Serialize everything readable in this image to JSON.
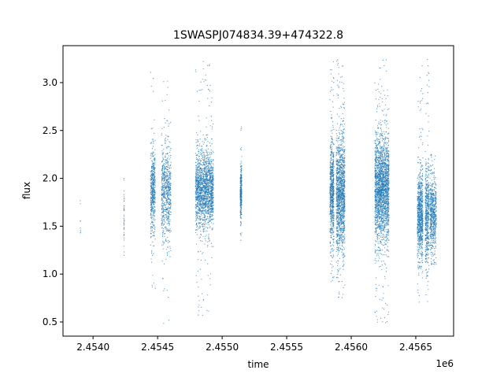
{
  "chart_data": {
    "type": "scatter",
    "title": "1SWASPJ074834.39+474322.8",
    "xlabel": "time",
    "ylabel": "flux",
    "x_offset_label": "1e6",
    "xlim": [
      2453767,
      2456793
    ],
    "ylim": [
      0.352,
      3.386
    ],
    "x_ticks": [
      2454000,
      2454500,
      2455000,
      2455500,
      2456000,
      2456500
    ],
    "x_tick_labels": [
      "2.4540",
      "2.4545",
      "2.4550",
      "2.4555",
      "2.4560",
      "2.4565"
    ],
    "y_ticks": [
      0.5,
      1.0,
      1.5,
      2.0,
      2.5,
      3.0
    ],
    "y_tick_labels": [
      "0.5",
      "1.0",
      "1.5",
      "2.0",
      "2.5",
      "3.0"
    ],
    "grid": false,
    "legend": "none",
    "marker_color": "#1f77b4",
    "point_groups": [
      {
        "time_range": [
          2453900,
          2453904
        ],
        "flux_median": 1.6,
        "flux_sd": 0.2,
        "flux_range": [
          1.43,
          2.05
        ],
        "n_points": 8
      },
      {
        "time_range": [
          2454238,
          2454242
        ],
        "flux_median": 1.6,
        "flux_sd": 0.22,
        "flux_range": [
          1.04,
          2.0
        ],
        "n_points": 40
      },
      {
        "time_range": [
          2454445,
          2454482
        ],
        "flux_median": 1.85,
        "flux_sd": 0.22,
        "flux_range": [
          0.7,
          3.18
        ],
        "n_points": 500
      },
      {
        "time_range": [
          2454530,
          2454604
        ],
        "flux_median": 1.85,
        "flux_sd": 0.25,
        "flux_range": [
          0.48,
          3.2
        ],
        "n_points": 700
      },
      {
        "time_range": [
          2454793,
          2454933
        ],
        "flux_median": 1.88,
        "flux_sd": 0.2,
        "flux_range": [
          0.57,
          3.22
        ],
        "n_points": 1800
      },
      {
        "time_range": [
          2455140,
          2455152
        ],
        "flux_median": 1.85,
        "flux_sd": 0.13,
        "flux_range": [
          1.3,
          2.55
        ],
        "n_points": 300
      },
      {
        "time_range": [
          2455835,
          2455866
        ],
        "flux_median": 1.85,
        "flux_sd": 0.27,
        "flux_range": [
          0.9,
          3.25
        ],
        "n_points": 700
      },
      {
        "time_range": [
          2455884,
          2455951
        ],
        "flux_median": 1.85,
        "flux_sd": 0.3,
        "flux_range": [
          0.75,
          3.25
        ],
        "n_points": 1400
      },
      {
        "time_range": [
          2456183,
          2456293
        ],
        "flux_median": 1.9,
        "flux_sd": 0.27,
        "flux_range": [
          0.48,
          3.25
        ],
        "n_points": 2200
      },
      {
        "time_range": [
          2456512,
          2456555
        ],
        "flux_median": 1.6,
        "flux_sd": 0.22,
        "flux_range": [
          0.7,
          3.2
        ],
        "n_points": 800
      },
      {
        "time_range": [
          2456573,
          2456604
        ],
        "flux_median": 1.65,
        "flux_sd": 0.27,
        "flux_range": [
          0.68,
          3.25
        ],
        "n_points": 500
      },
      {
        "time_range": [
          2456610,
          2456659
        ],
        "flux_median": 1.6,
        "flux_sd": 0.2,
        "flux_range": [
          1.1,
          2.25
        ],
        "n_points": 600
      }
    ]
  }
}
